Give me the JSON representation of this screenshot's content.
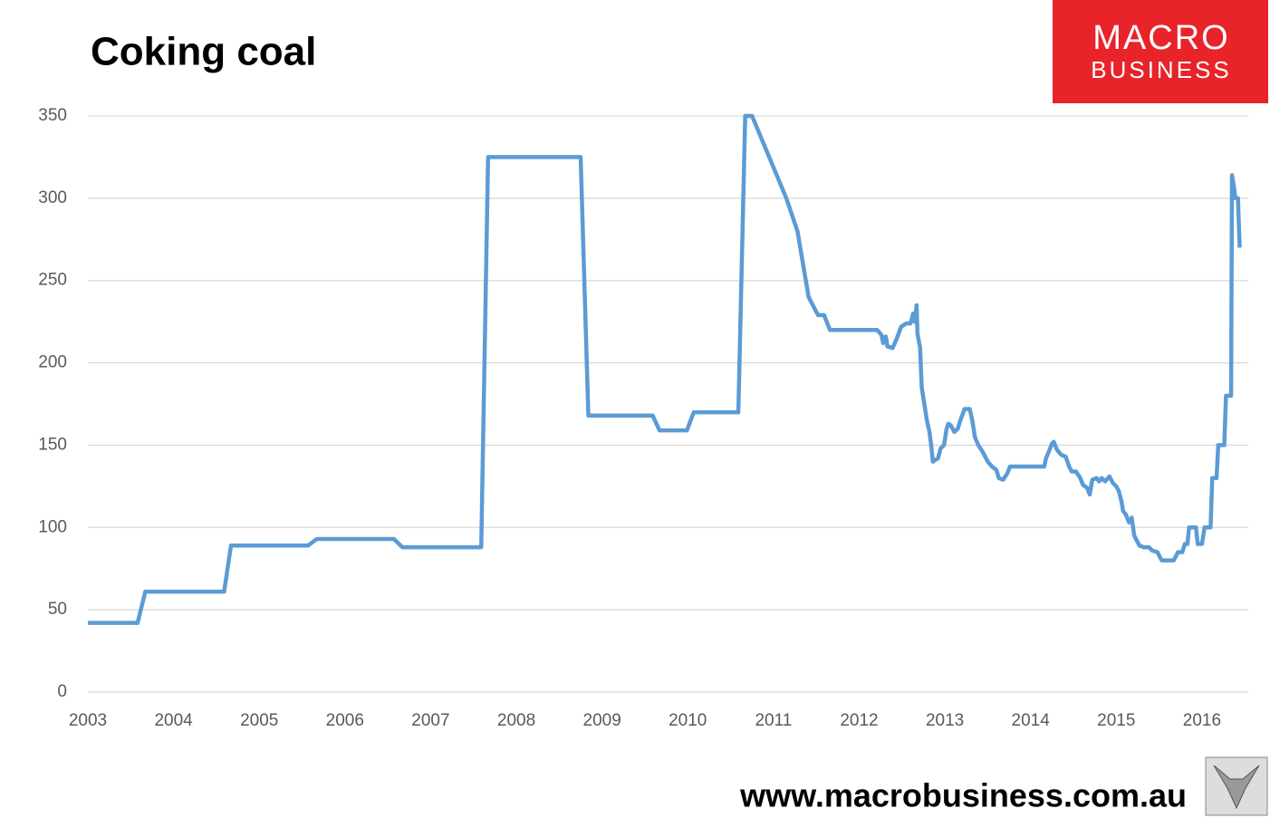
{
  "chart_data": {
    "type": "line",
    "title": "Coking coal",
    "color": "#5b9bd5",
    "grid": true,
    "xlim": [
      2003,
      2016.54
    ],
    "ylim": [
      0,
      350
    ],
    "xticks": [
      2003,
      2004,
      2005,
      2006,
      2007,
      2008,
      2009,
      2010,
      2011,
      2012,
      2013,
      2014,
      2015,
      2016
    ],
    "yticks": [
      0,
      50,
      100,
      150,
      200,
      250,
      300,
      350
    ],
    "x": [
      2003.0,
      2003.58,
      2003.67,
      2004.59,
      2004.67,
      2005.57,
      2005.67,
      2006.57,
      2006.67,
      2007.59,
      2007.67,
      2008.75,
      2008.84,
      2009.59,
      2009.67,
      2009.99,
      2010.07,
      2010.59,
      2010.67,
      2010.75,
      2011.15,
      2011.28,
      2011.41,
      2011.52,
      2011.59,
      2011.66,
      2012.21,
      2012.26,
      2012.28,
      2012.31,
      2012.33,
      2012.39,
      2012.44,
      2012.49,
      2012.55,
      2012.6,
      2012.63,
      2012.65,
      2012.67,
      2012.68,
      2012.7,
      2012.71,
      2012.73,
      2012.76,
      2012.79,
      2012.82,
      2012.84,
      2012.86,
      2012.89,
      2012.92,
      2012.95,
      2012.99,
      2013.02,
      2013.04,
      2013.07,
      2013.11,
      2013.15,
      2013.18,
      2013.23,
      2013.29,
      2013.32,
      2013.35,
      2013.39,
      2013.44,
      2013.5,
      2013.55,
      2013.6,
      2013.63,
      2013.68,
      2013.73,
      2013.76,
      2014.16,
      2014.18,
      2014.22,
      2014.25,
      2014.27,
      2014.31,
      2014.36,
      2014.41,
      2014.45,
      2014.48,
      2014.53,
      2014.58,
      2014.61,
      2014.66,
      2014.69,
      2014.72,
      2014.77,
      2014.8,
      2014.83,
      2014.87,
      2014.92,
      2014.96,
      2015.0,
      2015.03,
      2015.06,
      2015.08,
      2015.11,
      2015.15,
      2015.18,
      2015.21,
      2015.24,
      2015.27,
      2015.32,
      2015.38,
      2015.42,
      2015.48,
      2015.53,
      2015.67,
      2015.72,
      2015.77,
      2015.8,
      2015.83,
      2015.85,
      2015.93,
      2015.95,
      2016.0,
      2016.03,
      2016.1,
      2016.12,
      2016.17,
      2016.19,
      2016.26,
      2016.28,
      2016.34,
      2016.35,
      2016.37,
      2016.39,
      2016.42,
      2016.44
    ],
    "values": [
      42,
      42,
      61,
      61,
      89,
      89,
      93,
      93,
      88,
      88,
      325,
      325,
      168,
      168,
      159,
      159,
      170,
      170,
      350,
      350,
      300,
      280,
      240,
      229,
      229,
      220,
      220,
      217,
      212,
      216,
      210,
      209,
      215,
      222,
      224,
      224,
      230,
      225,
      235,
      218,
      212,
      210,
      185,
      175,
      165,
      158,
      150,
      140,
      141,
      142,
      148,
      150,
      160,
      163,
      162,
      158,
      160,
      165,
      172,
      172,
      165,
      155,
      150,
      146,
      140,
      137,
      135,
      130,
      129,
      133,
      137,
      137,
      142,
      147,
      151,
      152,
      147,
      144,
      143,
      137,
      134,
      134,
      130,
      126,
      124,
      120,
      129,
      130,
      128,
      130,
      128,
      131,
      127,
      125,
      122,
      116,
      110,
      108,
      103,
      106,
      95,
      92,
      89,
      88,
      88,
      86,
      85,
      80,
      80,
      85,
      85,
      90,
      90,
      100,
      100,
      90,
      90,
      100,
      100,
      130,
      130,
      150,
      150,
      180,
      180,
      314,
      308,
      300,
      300,
      270
    ]
  },
  "logo": {
    "line1": "MACRO",
    "line2": "BUSINESS"
  },
  "footer": "www.macrobusiness.com.au"
}
